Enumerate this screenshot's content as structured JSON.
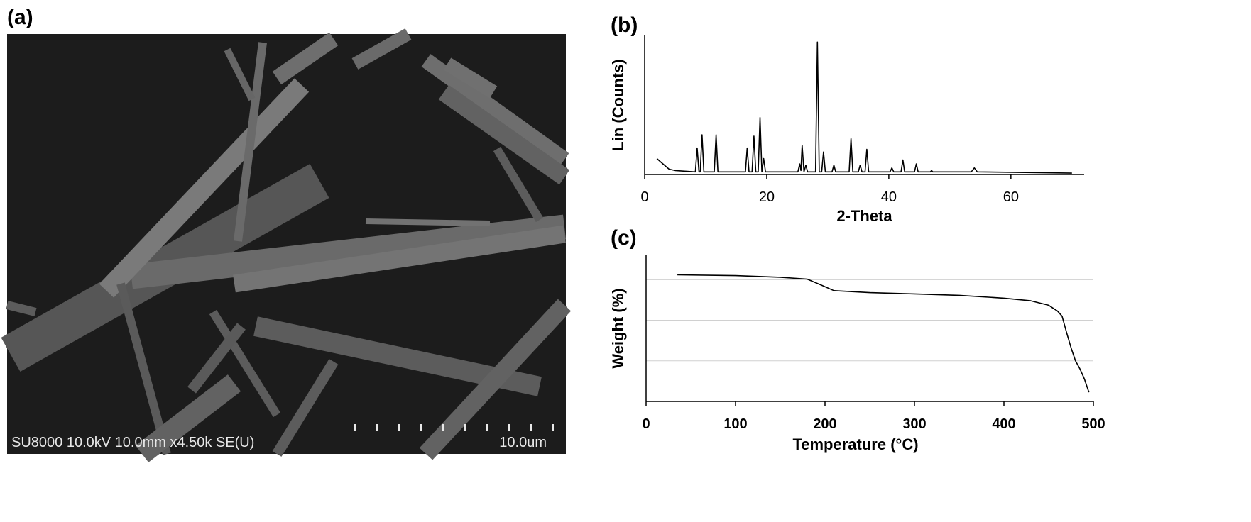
{
  "panel_a": {
    "label": "(a)",
    "info": "SU8000 10.0kV 10.0mm x4.50k SE(U)",
    "scale_label": "10.0um"
  },
  "chart_data": [
    {
      "type": "line",
      "label": "(b)",
      "x_label": "2-Theta",
      "y_label": "Lin (Counts)",
      "color": "#000000",
      "xlim": [
        0,
        72
      ],
      "xticks": [
        0,
        20,
        40,
        60
      ],
      "ylim": [
        0,
        105
      ],
      "x": [
        2,
        3,
        4,
        5,
        8.3,
        8.6,
        8.9,
        9.1,
        9.4,
        9.7,
        11.4,
        11.7,
        12.0,
        16.5,
        16.8,
        17.1,
        17.6,
        17.9,
        18.2,
        18.6,
        18.9,
        19.2,
        19.5,
        19.8,
        25.1,
        25.4,
        25.6,
        25.8,
        26.1,
        26.4,
        26.7,
        28.0,
        28.3,
        28.6,
        29.0,
        29.3,
        29.6,
        30.7,
        31.0,
        31.3,
        33.5,
        33.8,
        34.1,
        35.0,
        35.3,
        35.6,
        36.1,
        36.4,
        36.7,
        40.2,
        40.5,
        40.8,
        42.0,
        42.3,
        42.6,
        44.2,
        44.5,
        44.8,
        46.8,
        47.0,
        47.2,
        53.5,
        54.0,
        54.5,
        70
      ],
      "values": [
        12,
        8,
        4,
        3,
        2,
        20,
        2,
        2,
        30,
        2,
        2,
        30,
        2,
        2,
        20,
        2,
        2,
        29,
        2,
        2,
        43,
        2,
        12,
        2,
        2,
        8,
        3,
        22,
        2,
        7,
        2,
        2,
        100,
        2,
        2,
        17,
        2,
        2,
        7,
        2,
        2,
        27,
        2,
        2,
        7,
        2,
        2,
        19,
        2,
        2,
        5,
        2,
        2,
        11,
        2,
        2,
        8,
        2,
        2,
        3,
        2,
        2,
        5,
        2,
        1
      ]
    },
    {
      "type": "line",
      "label": "(c)",
      "x_label": "Temperature (°C)",
      "y_label": "Weight (%)",
      "color": "#000000",
      "xlim": [
        0,
        500
      ],
      "xticks": [
        0,
        100,
        200,
        300,
        400,
        500
      ],
      "ylim": [
        40,
        112
      ],
      "ygrid": [
        60,
        80,
        100
      ],
      "x": [
        35,
        100,
        150,
        180,
        195,
        210,
        250,
        300,
        350,
        400,
        430,
        450,
        460,
        465,
        470,
        475,
        480,
        485,
        490,
        495
      ],
      "values": [
        102.4,
        102,
        101.2,
        100.3,
        97.5,
        94.6,
        93.6,
        93,
        92.3,
        90.9,
        89.6,
        87.4,
        84.5,
        82,
        74,
        66.5,
        60,
        56,
        51,
        44.5
      ]
    }
  ]
}
